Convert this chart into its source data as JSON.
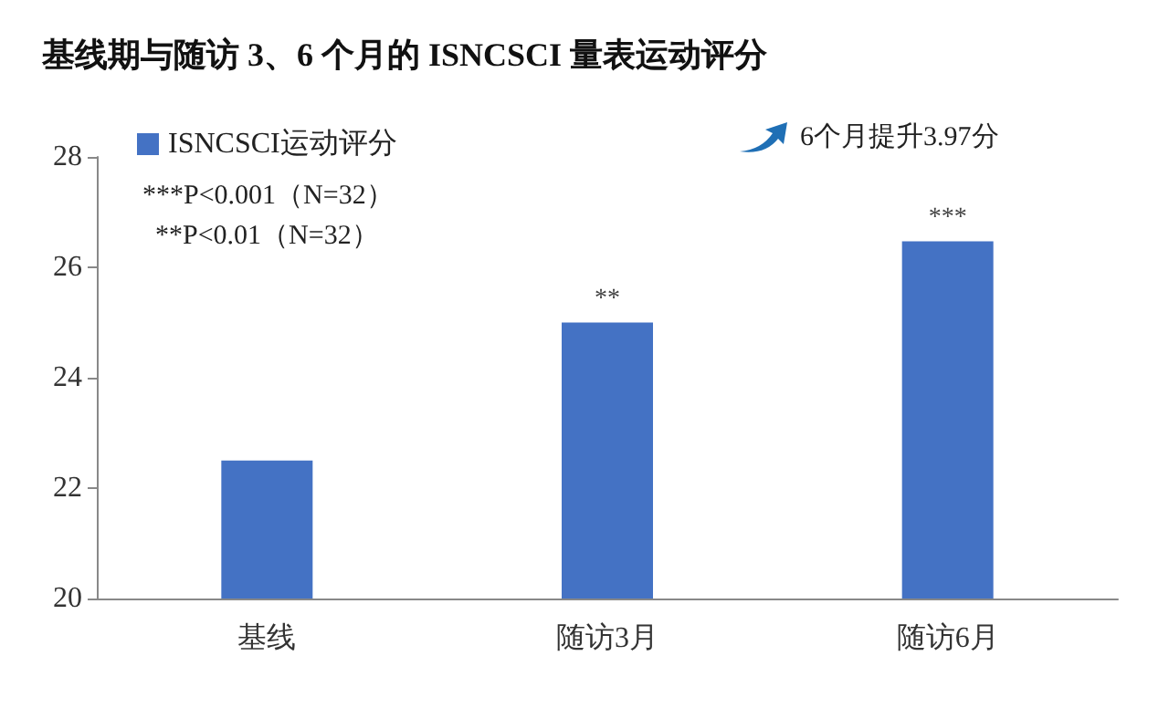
{
  "chart_data": {
    "type": "bar",
    "title": "基线期与随访 3、6 个月的 ISNCSCI 量表运动评分",
    "categories": [
      "基线",
      "随访3月",
      "随访6月"
    ],
    "series": [
      {
        "name": "ISNCSCI运动评分",
        "color": "#4472c4",
        "values": [
          22.5,
          25.0,
          26.47
        ]
      }
    ],
    "ylim": [
      20,
      28
    ],
    "yticks": [
      20,
      22,
      24,
      26,
      28
    ],
    "grid": false,
    "legend": "top left",
    "annotations": [
      "***P<0.001（N=32）",
      "**P<0.01（N=32）",
      "6个月提升3.97分",
      {
        "text": "**",
        "x": "随访3月",
        "y": 25.0
      },
      {
        "text": "***",
        "x": "随访6月",
        "y": 26.47
      }
    ]
  }
}
